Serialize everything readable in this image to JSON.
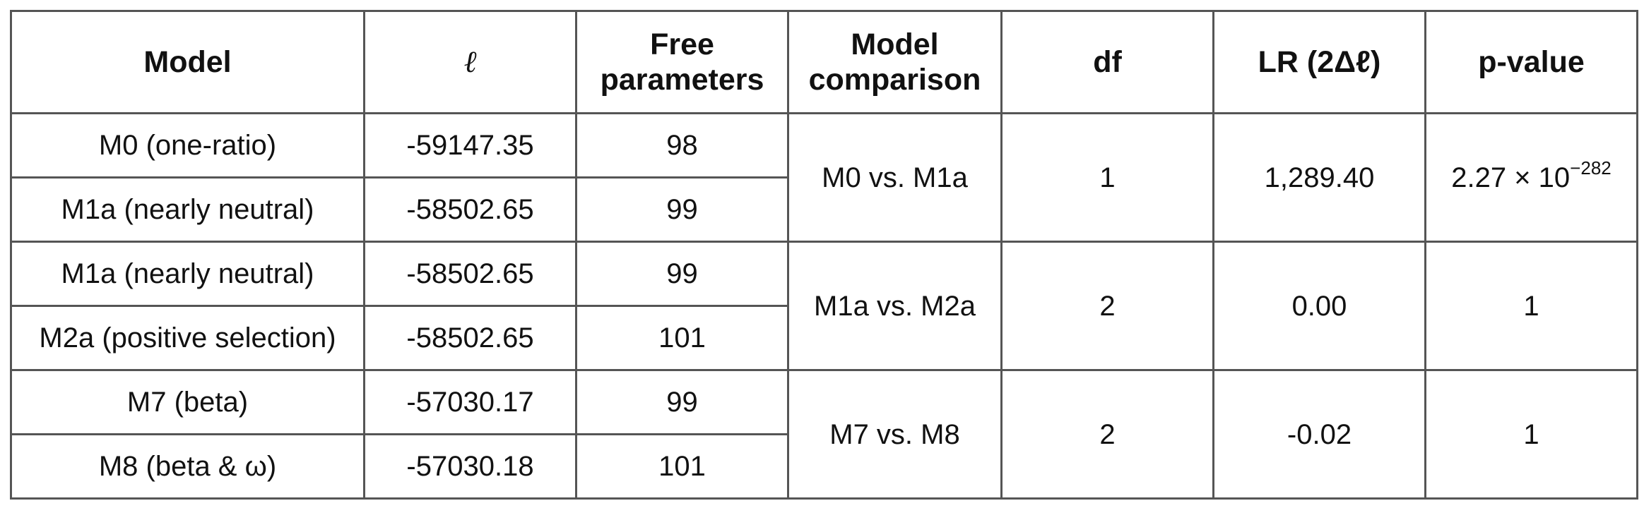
{
  "table": {
    "headers": {
      "model": "Model",
      "loglik": "ℓ",
      "free_params": [
        "Free",
        "parameters"
      ],
      "comparison": [
        "Model",
        "comparison"
      ],
      "df": "df",
      "lr": "LR (2Δℓ)",
      "pvalue": "p-value"
    },
    "groups": [
      {
        "rows": [
          {
            "model": "M0 (one-ratio)",
            "loglik": "-59147.35",
            "params": "98"
          },
          {
            "model": "M1a (nearly neutral)",
            "loglik": "-58502.65",
            "params": "99"
          }
        ],
        "comparison": "M0 vs. M1a",
        "df": "1",
        "lr": "1,289.40",
        "pvalue": {
          "mantissa": "2.27 × 10",
          "exponent": "−282"
        }
      },
      {
        "rows": [
          {
            "model": "M1a (nearly neutral)",
            "loglik": "-58502.65",
            "params": "99"
          },
          {
            "model": "M2a (positive selection)",
            "loglik": "-58502.65",
            "params": "101"
          }
        ],
        "comparison": "M1a vs. M2a",
        "df": "2",
        "lr": "0.00",
        "pvalue": "1"
      },
      {
        "rows": [
          {
            "model": "M7 (beta)",
            "loglik": "-57030.17",
            "params": "99"
          },
          {
            "model": "M8 (beta & ω)",
            "loglik": "-57030.18",
            "params": "101"
          }
        ],
        "comparison": "M7 vs. M8",
        "df": "2",
        "lr": "-0.02",
        "pvalue": "1"
      }
    ]
  }
}
